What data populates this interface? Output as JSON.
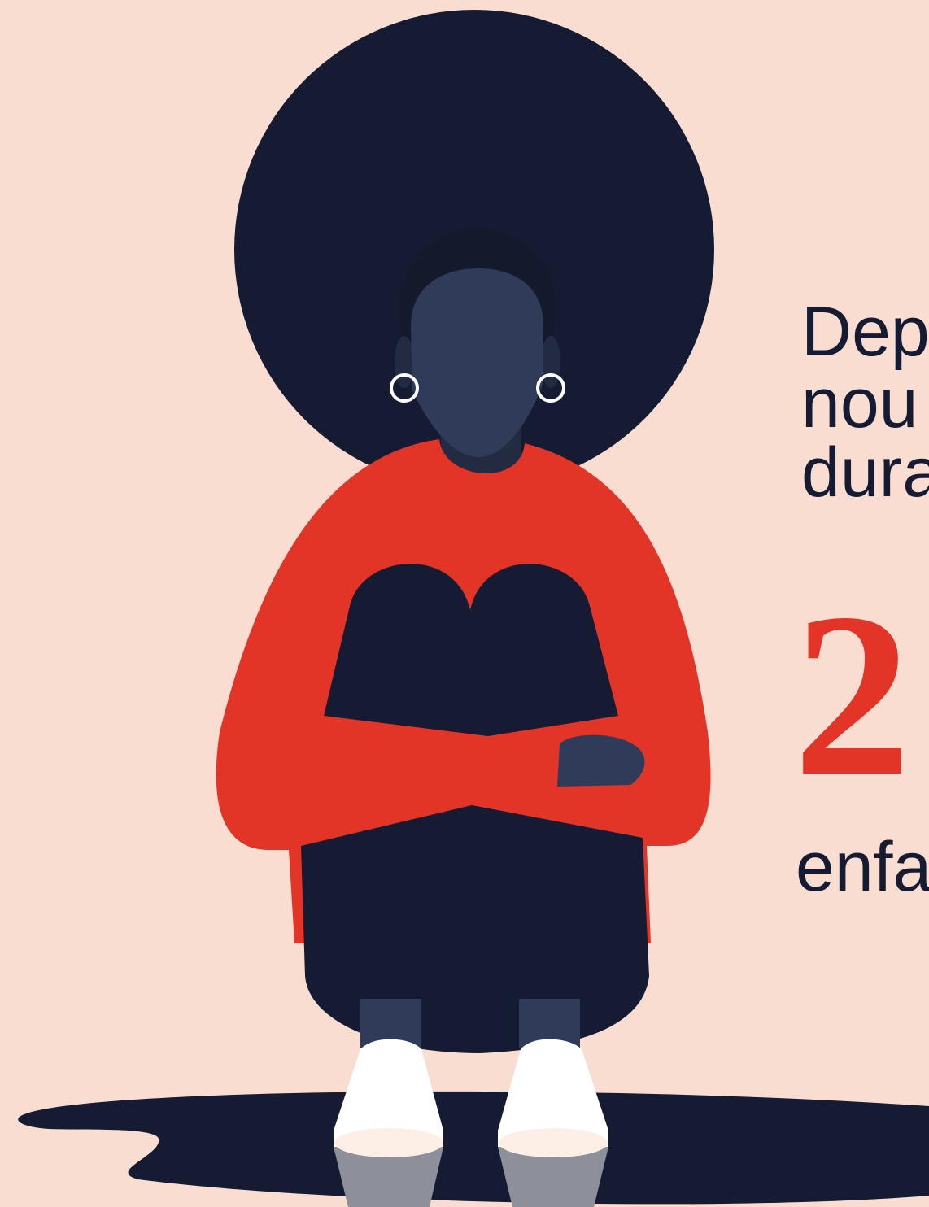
{
  "text": {
    "lines": [
      "Dep",
      "nou",
      "dura"
    ],
    "number": "2",
    "after": "enfa"
  }
}
